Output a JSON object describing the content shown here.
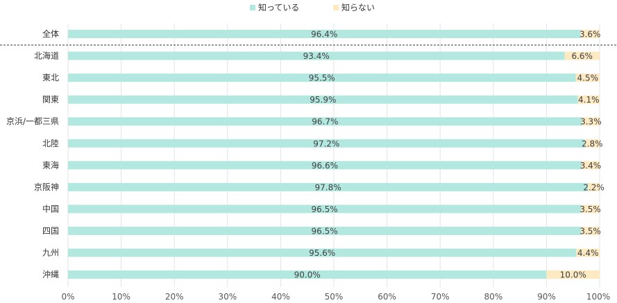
{
  "chart_data": {
    "type": "bar",
    "orientation": "horizontal",
    "stacked": true,
    "categories": [
      "全体",
      "北海道",
      "東北",
      "関東",
      "京浜/一都三県",
      "北陸",
      "東海",
      "京阪神",
      "中国",
      "四国",
      "九州",
      "沖縄"
    ],
    "series": [
      {
        "name": "知っている",
        "color": "#b3e8e0",
        "values": [
          96.4,
          93.4,
          95.5,
          95.9,
          96.7,
          97.2,
          96.6,
          97.8,
          96.5,
          96.5,
          95.6,
          90.0
        ]
      },
      {
        "name": "知らない",
        "color": "#fde9c2",
        "values": [
          3.6,
          6.6,
          4.5,
          4.1,
          3.3,
          2.8,
          3.4,
          2.2,
          3.5,
          3.5,
          4.4,
          10.0
        ]
      }
    ],
    "value_labels": [
      [
        "96.4%",
        "93.4%",
        "95.5%",
        "95.9%",
        "96.7%",
        "97.2%",
        "96.6%",
        "97.8%",
        "96.5%",
        "96.5%",
        "95.6%",
        "90.0%"
      ],
      [
        "3.6%",
        "6.6%",
        "4.5%",
        "4.1%",
        "3.3%",
        "2.8%",
        "3.4%",
        "2.2%",
        "3.5%",
        "3.5%",
        "4.4%",
        "10.0%"
      ]
    ],
    "xlim": [
      0,
      100
    ],
    "xticks": [
      "0%",
      "10%",
      "20%",
      "30%",
      "40%",
      "50%",
      "60%",
      "70%",
      "80%",
      "90%",
      "100%"
    ],
    "grid": true,
    "legend_position": "top-center",
    "separator_after_category": "全体"
  }
}
